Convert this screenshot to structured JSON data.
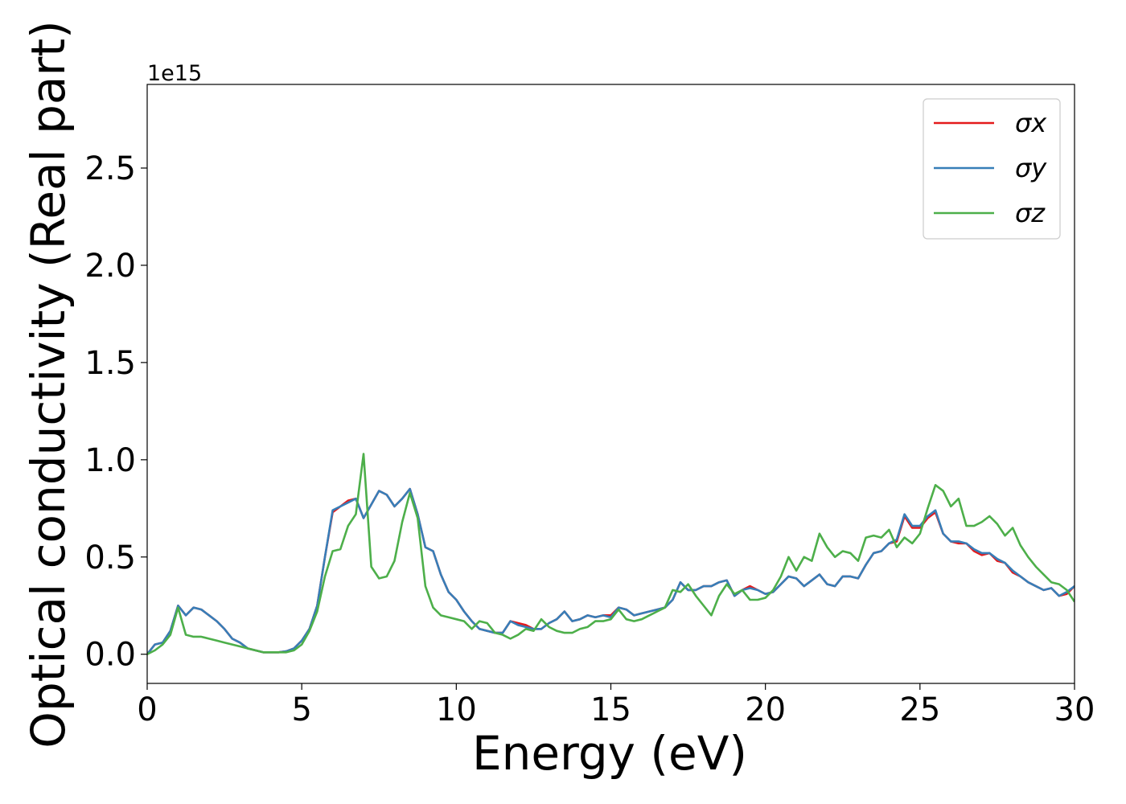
{
  "chart_data": {
    "type": "line",
    "xlabel": "Energy (eV)",
    "ylabel": "Optical conductivity (Real part)",
    "y_offset_label": "1e15",
    "xlim": [
      0,
      30
    ],
    "ylim": [
      -0.15,
      2.93
    ],
    "xticks": [
      0,
      5,
      10,
      15,
      20,
      25,
      30
    ],
    "yticks": [
      {
        "value": 0,
        "label": "0.0"
      },
      0.5,
      {
        "value": 1,
        "label": "1.0"
      },
      1.5,
      {
        "value": 2,
        "label": "2.0"
      },
      2.5
    ],
    "grid": false,
    "legend": "upper right",
    "x": [
      0,
      0.25,
      0.5,
      0.75,
      1,
      1.25,
      1.5,
      1.75,
      2,
      2.25,
      2.5,
      2.75,
      3,
      3.25,
      3.5,
      3.75,
      4,
      4.25,
      4.5,
      4.75,
      5,
      5.25,
      5.5,
      5.75,
      6,
      6.25,
      6.5,
      6.75,
      7,
      7.25,
      7.5,
      7.75,
      8,
      8.25,
      8.5,
      8.75,
      9,
      9.25,
      9.5,
      9.75,
      10,
      10.25,
      10.5,
      10.75,
      11,
      11.25,
      11.5,
      11.75,
      12,
      12.25,
      12.5,
      12.75,
      13,
      13.25,
      13.5,
      13.75,
      14,
      14.25,
      14.5,
      14.75,
      15,
      15.25,
      15.5,
      15.75,
      16,
      16.25,
      16.5,
      16.75,
      17,
      17.25,
      17.5,
      17.75,
      18,
      18.25,
      18.5,
      18.75,
      19,
      19.25,
      19.5,
      19.75,
      20,
      20.25,
      20.5,
      20.75,
      21,
      21.25,
      21.5,
      21.75,
      22,
      22.25,
      22.5,
      22.75,
      23,
      23.25,
      23.5,
      23.75,
      24,
      24.25,
      24.5,
      24.75,
      25,
      25.25,
      25.5,
      25.75,
      26,
      26.25,
      26.5,
      26.75,
      27,
      27.25,
      27.5,
      27.75,
      28,
      28.25,
      28.5,
      28.75,
      29,
      29.25,
      29.5,
      29.75,
      30
    ],
    "series": [
      {
        "name": "σx",
        "color": "#e41a1c",
        "values": [
          0,
          0.05,
          0.06,
          0.12,
          0.25,
          0.2,
          0.24,
          0.23,
          0.2,
          0.17,
          0.13,
          0.08,
          0.06,
          0.03,
          0.02,
          0.01,
          0.01,
          0.01,
          0.015,
          0.03,
          0.07,
          0.13,
          0.25,
          0.5,
          0.73,
          0.76,
          0.79,
          0.8,
          0.7,
          0.77,
          0.84,
          0.82,
          0.76,
          0.8,
          0.85,
          0.72,
          0.55,
          0.53,
          0.41,
          0.32,
          0.28,
          0.22,
          0.17,
          0.13,
          0.12,
          0.11,
          0.11,
          0.17,
          0.16,
          0.15,
          0.13,
          0.13,
          0.16,
          0.18,
          0.22,
          0.17,
          0.18,
          0.2,
          0.19,
          0.2,
          0.2,
          0.24,
          0.23,
          0.2,
          0.21,
          0.22,
          0.23,
          0.24,
          0.28,
          0.37,
          0.33,
          0.33,
          0.35,
          0.35,
          0.37,
          0.38,
          0.3,
          0.33,
          0.35,
          0.33,
          0.31,
          0.32,
          0.36,
          0.4,
          0.39,
          0.35,
          0.38,
          0.41,
          0.36,
          0.35,
          0.4,
          0.4,
          0.39,
          0.46,
          0.52,
          0.53,
          0.57,
          0.58,
          0.71,
          0.65,
          0.65,
          0.7,
          0.73,
          0.62,
          0.58,
          0.57,
          0.57,
          0.53,
          0.51,
          0.52,
          0.48,
          0.47,
          0.42,
          0.4,
          0.37,
          0.35,
          0.33,
          0.34,
          0.3,
          0.31,
          0.35
        ]
      },
      {
        "name": "σy",
        "color": "#377eb8",
        "values": [
          0,
          0.05,
          0.06,
          0.12,
          0.25,
          0.2,
          0.24,
          0.23,
          0.2,
          0.17,
          0.13,
          0.08,
          0.06,
          0.03,
          0.02,
          0.01,
          0.01,
          0.01,
          0.015,
          0.03,
          0.07,
          0.13,
          0.25,
          0.5,
          0.74,
          0.76,
          0.78,
          0.8,
          0.7,
          0.77,
          0.84,
          0.82,
          0.76,
          0.8,
          0.85,
          0.72,
          0.55,
          0.53,
          0.41,
          0.32,
          0.28,
          0.22,
          0.17,
          0.13,
          0.12,
          0.11,
          0.11,
          0.17,
          0.15,
          0.14,
          0.13,
          0.13,
          0.16,
          0.18,
          0.22,
          0.17,
          0.18,
          0.2,
          0.19,
          0.2,
          0.19,
          0.24,
          0.23,
          0.2,
          0.21,
          0.22,
          0.23,
          0.24,
          0.28,
          0.37,
          0.33,
          0.33,
          0.35,
          0.35,
          0.37,
          0.38,
          0.3,
          0.33,
          0.34,
          0.33,
          0.31,
          0.32,
          0.36,
          0.4,
          0.39,
          0.35,
          0.38,
          0.41,
          0.36,
          0.35,
          0.4,
          0.4,
          0.39,
          0.46,
          0.52,
          0.53,
          0.57,
          0.59,
          0.72,
          0.66,
          0.66,
          0.71,
          0.74,
          0.62,
          0.58,
          0.58,
          0.57,
          0.54,
          0.52,
          0.52,
          0.49,
          0.47,
          0.43,
          0.4,
          0.37,
          0.35,
          0.33,
          0.34,
          0.3,
          0.32,
          0.35
        ]
      },
      {
        "name": "σz",
        "color": "#4daf4a",
        "values": [
          0,
          0.02,
          0.05,
          0.1,
          0.24,
          0.1,
          0.09,
          0.09,
          0.08,
          0.07,
          0.06,
          0.05,
          0.04,
          0.03,
          0.02,
          0.01,
          0.01,
          0.01,
          0.01,
          0.02,
          0.05,
          0.12,
          0.22,
          0.4,
          0.53,
          0.54,
          0.66,
          0.72,
          1.03,
          0.45,
          0.39,
          0.4,
          0.48,
          0.68,
          0.83,
          0.7,
          0.35,
          0.24,
          0.2,
          0.19,
          0.18,
          0.17,
          0.13,
          0.17,
          0.16,
          0.11,
          0.1,
          0.08,
          0.1,
          0.13,
          0.12,
          0.18,
          0.14,
          0.12,
          0.11,
          0.11,
          0.13,
          0.14,
          0.17,
          0.17,
          0.18,
          0.23,
          0.18,
          0.17,
          0.18,
          0.2,
          0.22,
          0.24,
          0.33,
          0.32,
          0.36,
          0.3,
          0.25,
          0.2,
          0.3,
          0.36,
          0.31,
          0.33,
          0.28,
          0.28,
          0.29,
          0.33,
          0.4,
          0.5,
          0.43,
          0.5,
          0.48,
          0.62,
          0.55,
          0.5,
          0.53,
          0.52,
          0.48,
          0.6,
          0.61,
          0.6,
          0.64,
          0.55,
          0.6,
          0.57,
          0.62,
          0.75,
          0.87,
          0.84,
          0.76,
          0.8,
          0.66,
          0.66,
          0.68,
          0.71,
          0.67,
          0.61,
          0.65,
          0.56,
          0.5,
          0.45,
          0.41,
          0.37,
          0.36,
          0.33,
          0.27
        ]
      }
    ]
  }
}
